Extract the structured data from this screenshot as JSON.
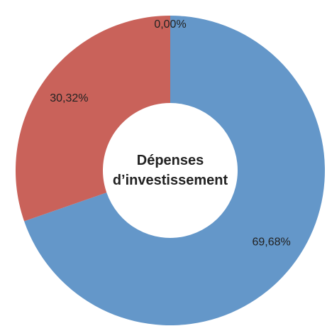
{
  "chart_data": {
    "type": "donut",
    "title": "Dépenses d’investissement",
    "values": [
      69.68,
      30.32,
      0.0
    ],
    "value_labels": [
      "69,68%",
      "30,32%",
      "0,00%"
    ],
    "colors": [
      "#6497c9",
      "#c9625a",
      "#9bbb59"
    ]
  }
}
